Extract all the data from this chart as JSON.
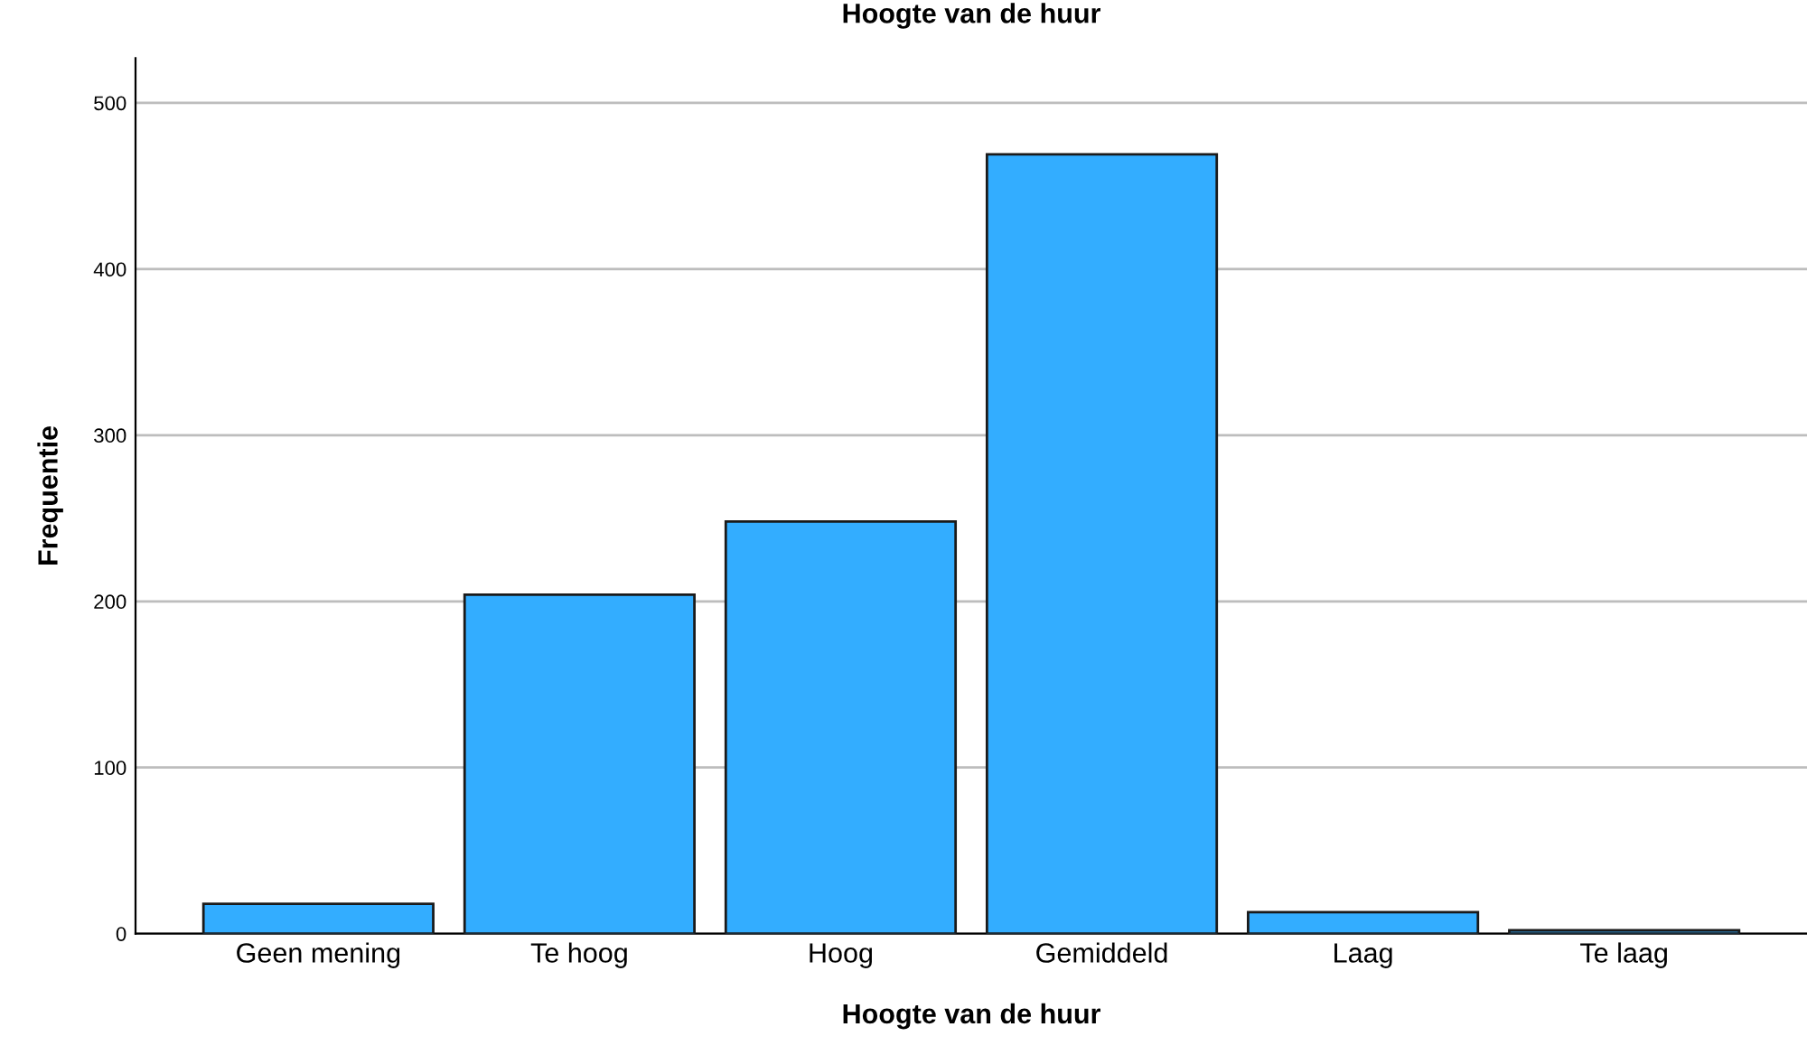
{
  "chart_data": {
    "type": "bar",
    "title": "Hoogte van de huur",
    "xlabel": "Hoogte van de huur",
    "ylabel": "Frequentie",
    "categories": [
      "Geen mening",
      "Te hoog",
      "Hoog",
      "Gemiddeld",
      "Laag",
      "Te laag"
    ],
    "values": [
      18,
      204,
      248,
      469,
      13,
      2
    ],
    "color": "#33adff",
    "ylim": [
      0,
      527
    ],
    "yticks": [
      0,
      100,
      200,
      300,
      400,
      500
    ],
    "grid": "y"
  }
}
